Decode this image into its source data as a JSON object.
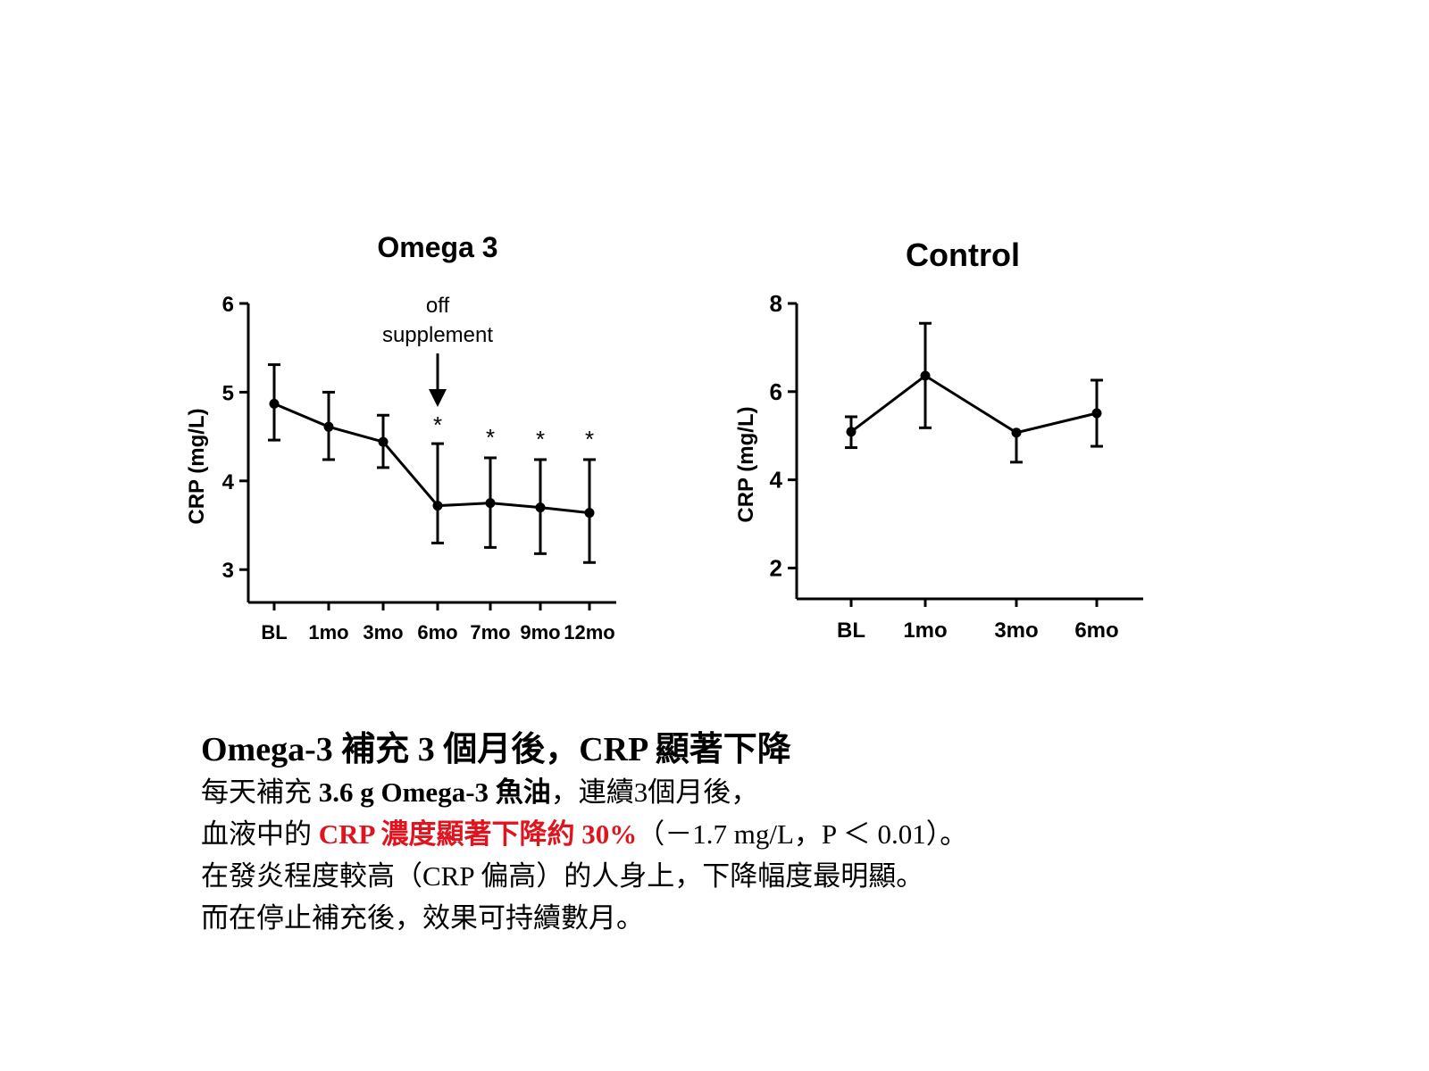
{
  "colors": {
    "highlight": "#e0141e",
    "ink": "#000000"
  },
  "chart_data": [
    {
      "type": "line",
      "title": "Omega 3",
      "ylabel": "CRP (mg/L)",
      "xlabel": "",
      "ylim": [
        2.63,
        6
      ],
      "yticks": [
        3,
        4,
        5,
        6
      ],
      "categories": [
        "BL",
        "1mo",
        "3mo",
        "6mo",
        "7mo",
        "9mo",
        "12mo"
      ],
      "series": [
        {
          "name": "Omega 3",
          "values": [
            4.87,
            4.61,
            4.44,
            3.72,
            3.75,
            3.7,
            3.64
          ],
          "err_upper": [
            5.31,
            5.0,
            4.74,
            4.42,
            4.26,
            4.24,
            4.24
          ],
          "err_lower": [
            4.46,
            4.24,
            4.15,
            3.3,
            3.25,
            3.18,
            3.08
          ]
        }
      ],
      "significance": [
        "",
        "",
        "",
        "*",
        "*",
        "*",
        "*"
      ],
      "annotation": {
        "text_line1": "off",
        "text_line2": "supplement",
        "at": "6mo"
      },
      "grid": false
    },
    {
      "type": "line",
      "title": "Control",
      "ylabel": "CRP (mg/L)",
      "xlabel": "",
      "ylim": [
        1.3,
        8
      ],
      "yticks": [
        2,
        4,
        6,
        8
      ],
      "categories": [
        "BL",
        "1mo",
        "3mo",
        "6mo"
      ],
      "series": [
        {
          "name": "Control",
          "values": [
            5.09,
            6.36,
            5.07,
            5.51
          ],
          "err_upper": [
            5.43,
            7.55,
            5.07,
            6.26
          ],
          "err_lower": [
            4.73,
            5.18,
            4.4,
            4.76
          ]
        }
      ],
      "grid": false
    }
  ],
  "text": {
    "title": "Omega-3 補充 3 個月後，CRP 顯著下降",
    "line1_a": "每天補充 ",
    "line1_b": "3.6 g Omega-3 魚油",
    "line1_c": "，連續3個月後，",
    "line2_a": "血液中的 ",
    "line2_b": "CRP 濃度顯著下降約 30%",
    "line2_c": "（－1.7 mg/L，P ＜ 0.01）。",
    "line3": "在發炎程度較高（CRP 偏高）的人身上，下降幅度最明顯。",
    "line4": "而在停止補充後，效果可持續數月。"
  }
}
